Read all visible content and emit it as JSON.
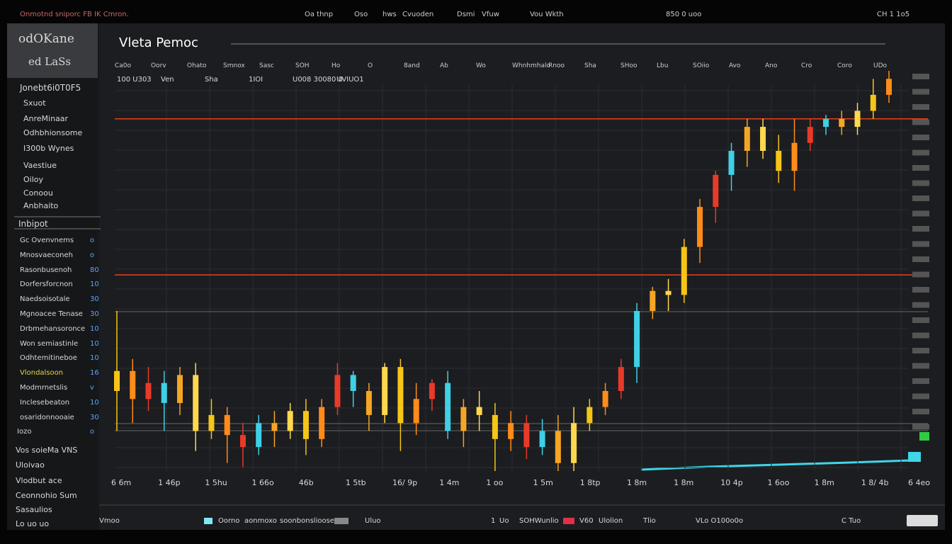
{
  "topbar": {
    "items": [
      "Onmotnd sniporc FB IK Cmron.",
      "Oa thnp",
      "Oso",
      "hws",
      "Cvuoden",
      "Dsmi",
      "Vfuw",
      "Vou Wkth",
      "850 0 uoo",
      "CH 1 1o5"
    ]
  },
  "sidebar": {
    "brand": [
      "odOKane",
      "ed LaSs"
    ],
    "menu": [
      "Jonebt6i0T0F5",
      "Sxuot",
      "AnreMinaar",
      "Odhbhionsome",
      "I300b Wynes",
      "Vaestiue",
      "Oiloy",
      "Conoou",
      "Anbhaito"
    ],
    "section": "Inbipot",
    "rows": [
      {
        "name": "Gc Ovenvnems",
        "value": "o"
      },
      {
        "name": "Mnosvaeconeh",
        "value": "o"
      },
      {
        "name": "Rasonbusenoh",
        "value": "80"
      },
      {
        "name": "Dorfersforcnon",
        "value": "10"
      },
      {
        "name": "Naedsoisotale",
        "value": "30"
      },
      {
        "name": "Mgnoacee Tenase",
        "value": "30"
      },
      {
        "name": "Drbmehansoronce",
        "value": "10"
      },
      {
        "name": "Won semiastinle",
        "value": "10"
      },
      {
        "name": "Odhtemitineboe",
        "value": "10"
      },
      {
        "name": "Vlondalsoon",
        "value": "16"
      },
      {
        "name": "Modmrnetslis",
        "value": "v"
      },
      {
        "name": "Inclesebeaton",
        "value": "10"
      },
      {
        "name": "osaridonnooaie",
        "value": "30"
      },
      {
        "name": "Iozo",
        "value": "o"
      }
    ],
    "footer": [
      "Vos soieMa VNS",
      "Uloivao",
      "Vlodbut ace",
      "Ceonnohio Sum",
      "Sasaulios",
      "Lo uo uo"
    ]
  },
  "chart_data": {
    "type": "candlestick",
    "title": "Vleta Pemoc",
    "toolbar": [
      "Ca0o",
      "Oorv",
      "Ohato",
      "Smnox",
      "Sasc",
      "SOH",
      "Ho",
      "O",
      "8and",
      "Ab",
      "Wo",
      "Whnhmhalo",
      "Rnoo",
      "Sha",
      "SHoo",
      "Lbu",
      "SOiio",
      "Avo",
      "Ano",
      "Cro",
      "Coro",
      "UDo"
    ],
    "info": [
      "100 U303",
      "Ven",
      "Sha",
      "1IOI",
      "U008 30080 0",
      "UVIUO1"
    ],
    "ylim": [
      0,
      100
    ],
    "open": [
      20,
      25,
      18,
      22,
      17,
      24,
      10,
      14,
      9,
      6,
      12,
      10,
      15,
      8,
      16,
      24,
      20,
      14,
      26,
      12,
      18,
      22,
      10,
      16,
      14,
      8,
      12,
      6,
      10,
      2,
      12,
      16,
      20,
      26,
      40,
      45,
      44,
      56,
      66,
      74,
      80,
      86,
      80,
      75,
      82,
      86,
      88,
      86,
      90,
      94
    ],
    "close": [
      25,
      18,
      22,
      17,
      24,
      10,
      14,
      9,
      6,
      12,
      10,
      15,
      8,
      16,
      24,
      20,
      14,
      26,
      12,
      18,
      22,
      10,
      16,
      14,
      8,
      12,
      6,
      10,
      2,
      12,
      16,
      20,
      26,
      40,
      45,
      44,
      56,
      66,
      74,
      80,
      86,
      80,
      75,
      82,
      86,
      88,
      86,
      90,
      94,
      98
    ],
    "high": [
      40,
      28,
      26,
      25,
      26,
      27,
      18,
      16,
      12,
      14,
      15,
      17,
      18,
      18,
      27,
      25,
      22,
      27,
      28,
      22,
      23,
      25,
      18,
      20,
      17,
      15,
      14,
      13,
      14,
      16,
      18,
      22,
      28,
      42,
      46,
      48,
      58,
      68,
      75,
      82,
      88,
      88,
      84,
      88,
      88,
      89,
      90,
      92,
      98,
      100
    ],
    "low": [
      10,
      12,
      15,
      10,
      14,
      5,
      8,
      2,
      1,
      4,
      6,
      8,
      4,
      6,
      14,
      16,
      10,
      12,
      5,
      9,
      15,
      8,
      6,
      10,
      0,
      5,
      3,
      4,
      0,
      0,
      10,
      14,
      18,
      22,
      38,
      40,
      42,
      52,
      62,
      70,
      76,
      78,
      72,
      70,
      80,
      84,
      84,
      84,
      88,
      92
    ],
    "colors": [
      "#f5c518",
      "#ff8c1a",
      "#e83a2a",
      "#3fd0e6",
      "#f5a623",
      "#ffd84d"
    ],
    "levels": [
      88,
      49
    ],
    "level_color": "#e8401c",
    "x_labels": [
      "6 6m",
      "1 46p",
      "1 5hu",
      "1 66o",
      "46b",
      "1 5tb",
      "16/ 9p",
      "1 4m",
      "1 oo",
      "1 5m",
      "1 8tp",
      "1 8m",
      "1 8m",
      "10 4p",
      "1 6oo",
      "1 8m",
      "1 8/ 4b",
      "6 4eo"
    ]
  },
  "bottombar": [
    "Vmoo",
    "Oorno",
    "aonmoxo",
    "soonbonslioose",
    "Uluo",
    "1",
    "Uo",
    "SOHWunlio",
    "V60",
    "Ulolion",
    "Tlio",
    "VLo O100o0o",
    "C Tuo"
  ]
}
